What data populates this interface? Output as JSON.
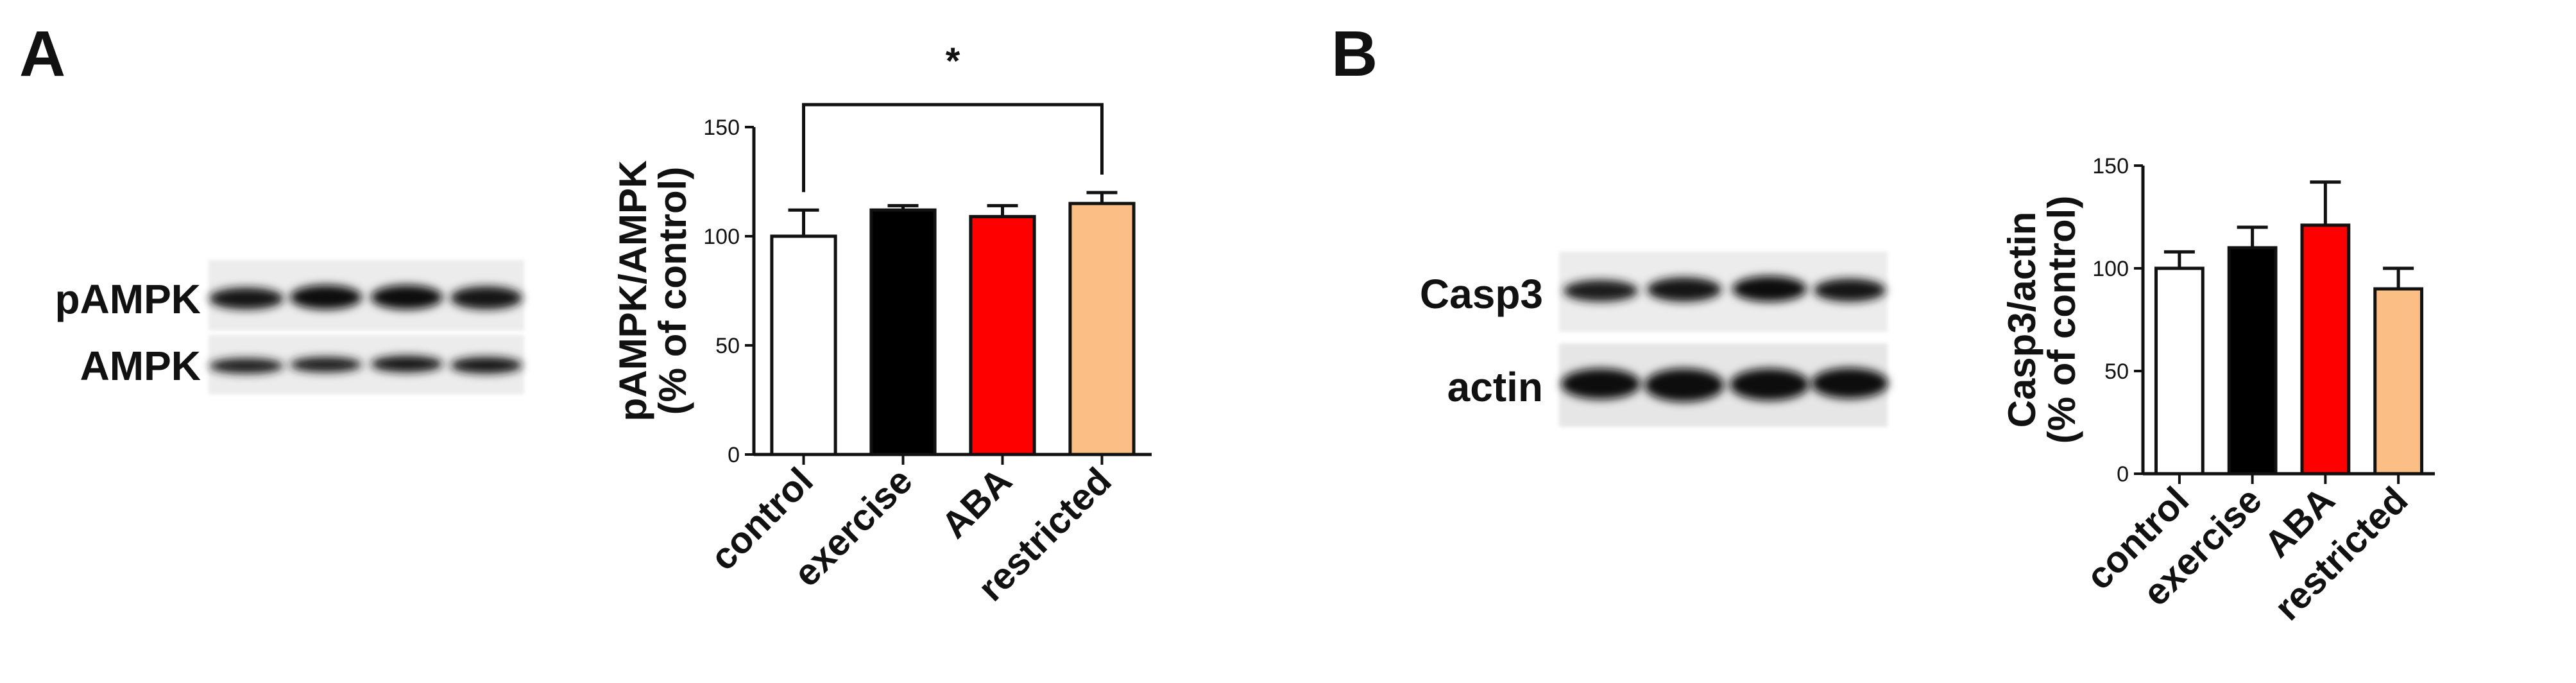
{
  "panels": [
    {
      "letter": "A",
      "blot": {
        "row_labels": [
          "pAMPK",
          "AMPK"
        ],
        "lanes": 4
      },
      "significance": {
        "from": "control",
        "to": "restricted",
        "mark": "*"
      }
    },
    {
      "letter": "B",
      "blot": {
        "row_labels": [
          "Casp3",
          "actin"
        ],
        "lanes": 4
      }
    }
  ],
  "bar_colors": [
    "#ffffff",
    "#000000",
    "#ff0000",
    "#fbbe84"
  ],
  "chart_data": [
    {
      "type": "bar",
      "categories": [
        "control",
        "exercise",
        "ABA",
        "restricted"
      ],
      "values": [
        100,
        112,
        109,
        115
      ],
      "errors": [
        12,
        2,
        5,
        5
      ],
      "ylabel_lines": [
        "pAMPK/AMPK",
        "(% of control)"
      ],
      "ylim": [
        0,
        150
      ],
      "yticks": [
        0,
        50,
        100,
        150
      ],
      "grid": false
    },
    {
      "type": "bar",
      "categories": [
        "control",
        "exercise",
        "ABA",
        "restricted"
      ],
      "values": [
        100,
        110,
        121,
        90
      ],
      "errors": [
        8,
        10,
        21,
        10
      ],
      "ylabel_lines": [
        "Casp3/actin",
        "(% of control)"
      ],
      "ylim": [
        0,
        150
      ],
      "yticks": [
        0,
        50,
        100,
        150
      ],
      "grid": false
    }
  ]
}
